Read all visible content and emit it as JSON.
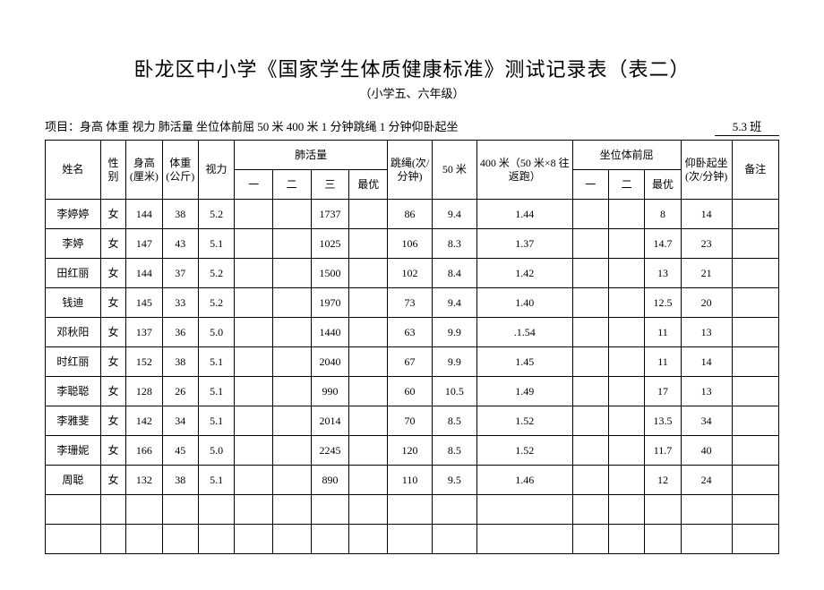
{
  "title": "卧龙区中小学《国家学生体质健康标准》测试记录表（表二）",
  "subtitle": "（小学五、六年级）",
  "meta_prefix": "项目：",
  "meta_items": "身高  体重  视力    肺活量    坐位体前屈    50 米    400 米           1 分钟跳绳   1 分钟仰卧起坐",
  "class_label": "5.3 班",
  "headers": {
    "name": "姓名",
    "sex": "性别",
    "height": "身高(厘米)",
    "weight": "体重(公斤)",
    "vision": "视力",
    "lung_group": "肺活量",
    "lung_1": "一",
    "lung_2": "二",
    "lung_3": "三",
    "lung_best": "最优",
    "jump": "跳绳(次/分钟)",
    "m50": "50 米",
    "m400": "400 米（50 米×8 往返跑）",
    "sit_group": "坐位体前屈",
    "sit_1": "一",
    "sit_2": "二",
    "sit_best": "最优",
    "situp": "仰卧起坐(次/分钟)",
    "note": "备注"
  },
  "rows": [
    {
      "name": "李婷婷",
      "sex": "女",
      "height": "144",
      "weight": "38",
      "vision": "5.2",
      "lung1": "",
      "lung2": "",
      "lung3": "1737",
      "lung_best": "",
      "jump": "86",
      "m50": "9.4",
      "m400": "1.44",
      "sit1": "",
      "sit2": "",
      "sit_best": "8",
      "situp": "14",
      "note": ""
    },
    {
      "name": "李婷",
      "sex": "女",
      "height": "147",
      "weight": "43",
      "vision": "5.1",
      "lung1": "",
      "lung2": "",
      "lung3": "1025",
      "lung_best": "",
      "jump": "106",
      "m50": "8.3",
      "m400": "1.37",
      "sit1": "",
      "sit2": "",
      "sit_best": "14.7",
      "situp": "23",
      "note": ""
    },
    {
      "name": "田红丽",
      "sex": "女",
      "height": "144",
      "weight": "37",
      "vision": "5.2",
      "lung1": "",
      "lung2": "",
      "lung3": "1500",
      "lung_best": "",
      "jump": "102",
      "m50": "8.4",
      "m400": "1.42",
      "sit1": "",
      "sit2": "",
      "sit_best": "13",
      "situp": "21",
      "note": ""
    },
    {
      "name": "钱迪",
      "sex": "女",
      "height": "145",
      "weight": "33",
      "vision": "5.2",
      "lung1": "",
      "lung2": "",
      "lung3": "1970",
      "lung_best": "",
      "jump": "73",
      "m50": "9.4",
      "m400": "1.40",
      "sit1": "",
      "sit2": "",
      "sit_best": "12.5",
      "situp": "20",
      "note": ""
    },
    {
      "name": "邓秋阳",
      "sex": "女",
      "height": "137",
      "weight": "36",
      "vision": "5.0",
      "lung1": "",
      "lung2": "",
      "lung3": "1440",
      "lung_best": "",
      "jump": "63",
      "m50": "9.9",
      "m400": ".1.54",
      "sit1": "",
      "sit2": "",
      "sit_best": "11",
      "situp": "13",
      "note": ""
    },
    {
      "name": "时红丽",
      "sex": "女",
      "height": "152",
      "weight": "38",
      "vision": "5.1",
      "lung1": "",
      "lung2": "",
      "lung3": "2040",
      "lung_best": "",
      "jump": "67",
      "m50": "9.9",
      "m400": "1.45",
      "sit1": "",
      "sit2": "",
      "sit_best": "11",
      "situp": "14",
      "note": ""
    },
    {
      "name": "李聪聪",
      "sex": "女",
      "height": "128",
      "weight": "26",
      "vision": "5.1",
      "lung1": "",
      "lung2": "",
      "lung3": "990",
      "lung_best": "",
      "jump": "60",
      "m50": "10.5",
      "m400": "1.49",
      "sit1": "",
      "sit2": "",
      "sit_best": "17",
      "situp": "13",
      "note": ""
    },
    {
      "name": "李雅斐",
      "sex": "女",
      "height": "142",
      "weight": "34",
      "vision": "5.1",
      "lung1": "",
      "lung2": "",
      "lung3": "2014",
      "lung_best": "",
      "jump": "70",
      "m50": "8.5",
      "m400": "1.52",
      "sit1": "",
      "sit2": "",
      "sit_best": "13.5",
      "situp": "34",
      "note": ""
    },
    {
      "name": "李珊妮",
      "sex": "女",
      "height": "166",
      "weight": "45",
      "vision": "5.0",
      "lung1": "",
      "lung2": "",
      "lung3": "2245",
      "lung_best": "",
      "jump": "120",
      "m50": "8.5",
      "m400": "1.52",
      "sit1": "",
      "sit2": "",
      "sit_best": "11.7",
      "situp": "40",
      "note": ""
    },
    {
      "name": "周聪",
      "sex": "女",
      "height": "132",
      "weight": "38",
      "vision": "5.1",
      "lung1": "",
      "lung2": "",
      "lung3": "890",
      "lung_best": "",
      "jump": "110",
      "m50": "9.5",
      "m400": "1.46",
      "sit1": "",
      "sit2": "",
      "sit_best": "12",
      "situp": "24",
      "note": ""
    }
  ],
  "empty_rows": 2
}
